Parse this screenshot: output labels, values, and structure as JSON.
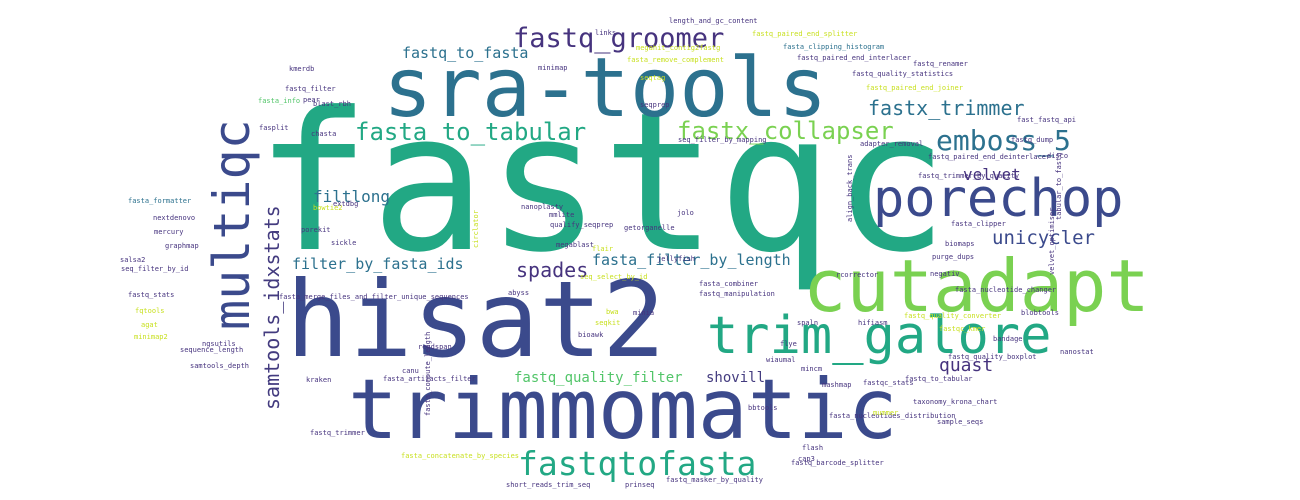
{
  "palette": {
    "navy": "#3b4a8c",
    "indigo": "#433b7f",
    "purple": "#46337e",
    "teal": "#21808d",
    "blueteal": "#2c718e",
    "green": "#22a884",
    "lightgreen": "#52c569",
    "lime": "#7ad151",
    "yellow": "#c8e020"
  },
  "words": [
    {
      "id": "fastqc",
      "text": "fastqc",
      "color": "green"
    },
    {
      "id": "hisat2",
      "text": "hisat2",
      "color": "navy"
    },
    {
      "id": "sra-tools",
      "text": "sra-tools",
      "color": "blueteal"
    },
    {
      "id": "trimmomatic",
      "text": "trimmomatic",
      "color": "navy"
    },
    {
      "id": "cutadapt",
      "text": "cutadapt",
      "color": "lime"
    },
    {
      "id": "trim_galore",
      "text": "trim_galore",
      "color": "green"
    },
    {
      "id": "porechop",
      "text": "porechop",
      "color": "navy"
    },
    {
      "id": "multiqc",
      "text": "multiqc",
      "color": "navy"
    },
    {
      "id": "fastqtofasta",
      "text": "fastqtofasta",
      "color": "green"
    },
    {
      "id": "fastq_groomer",
      "text": "fastq_groomer",
      "color": "purple"
    },
    {
      "id": "emboss_5",
      "text": "emboss_5",
      "color": "blueteal"
    },
    {
      "id": "fasta_to_tabular",
      "text": "fasta_to_tabular",
      "color": "green"
    },
    {
      "id": "fastx_collapser",
      "text": "fastx_collapser",
      "color": "lime"
    },
    {
      "id": "fastx_trimmer",
      "text": "fastx_trimmer",
      "color": "blueteal"
    },
    {
      "id": "samtools_idxstats",
      "text": "samtools_idxstats",
      "color": "indigo"
    },
    {
      "id": "spades",
      "text": "spades",
      "color": "purple"
    },
    {
      "id": "unicycler",
      "text": "unicycler",
      "color": "navy"
    },
    {
      "id": "quast",
      "text": "quast",
      "color": "purple"
    },
    {
      "id": "velvet",
      "text": "velvet",
      "color": "purple"
    },
    {
      "id": "filtlong",
      "text": "filtlong",
      "color": "blueteal"
    },
    {
      "id": "filter_by_fasta_ids",
      "text": "filter_by_fasta_ids",
      "color": "blueteal"
    },
    {
      "id": "fasta_filter_by_length",
      "text": "fasta_filter_by_length",
      "color": "blueteal"
    },
    {
      "id": "fastq_to_fasta",
      "text": "fastq_to_fasta",
      "color": "blueteal"
    },
    {
      "id": "fastq_quality_filter",
      "text": "fastq_quality_filter",
      "color": "lightgreen"
    },
    {
      "id": "shovill",
      "text": "shovill",
      "color": "indigo"
    },
    {
      "id": "length_and_gc_content",
      "text": "length_and_gc_content",
      "color": "purple"
    },
    {
      "id": "links",
      "text": "links",
      "color": "purple"
    },
    {
      "id": "fasta_clipping_histogram",
      "text": "fasta_clipping_histogram",
      "color": "blueteal"
    },
    {
      "id": "fastq_paired_end_splitter",
      "text": "fastq_paired_end_splitter",
      "color": "yellow"
    },
    {
      "id": "fastq_paired_end_interlacer",
      "text": "fastq_paired_end_interlacer",
      "color": "purple"
    },
    {
      "id": "fastq_renamer",
      "text": "fastq_renamer",
      "color": "purple"
    },
    {
      "id": "fasta_remove_complement",
      "text": "fasta_remove_complement",
      "color": "yellow"
    },
    {
      "id": "fastq_quality_statistics",
      "text": "fastq_quality_statistics",
      "color": "purple"
    },
    {
      "id": "fastq_paired_end_joiner",
      "text": "fastq_paired_end_joiner",
      "color": "yellow"
    },
    {
      "id": "megahit_contig2fastg",
      "text": "megahit_contig2fastg",
      "color": "yellow"
    },
    {
      "id": "minimap",
      "text": "minimap",
      "color": "purple"
    },
    {
      "id": "kmerdb",
      "text": "kmerdb",
      "color": "purple"
    },
    {
      "id": "fastq_filter",
      "text": "fastq_filter",
      "color": "purple"
    },
    {
      "id": "pear",
      "text": "pear",
      "color": "purple"
    },
    {
      "id": "seqtag",
      "text": "seqtag",
      "color": "yellow"
    },
    {
      "id": "fasta_info",
      "text": "fasta_info",
      "color": "lightgreen"
    },
    {
      "id": "blast_rbh",
      "text": "blast_rbh",
      "color": "purple"
    },
    {
      "id": "seqprep",
      "text": "seqprep",
      "color": "purple"
    },
    {
      "id": "fast_fastq_api",
      "text": "fast_fastq_api",
      "color": "purple"
    },
    {
      "id": "fastq_dump",
      "text": "fastq_dump",
      "color": "purple"
    },
    {
      "id": "fastq_paired_end_deinterlacer",
      "text": "fastq_paired_end_deinterlacer",
      "color": "purple"
    },
    {
      "id": "adapter_removal",
      "text": "adapter_removal",
      "color": "purple"
    },
    {
      "id": "fasplit",
      "text": "fasplit",
      "color": "purple"
    },
    {
      "id": "chasta",
      "text": "chasta",
      "color": "purple"
    },
    {
      "id": "seq_filter_by_mapping",
      "text": "seq_filter_by_mapping",
      "color": "purple"
    },
    {
      "id": "fastq_trimmer_by_quality",
      "text": "fastq_trimmer_by_quality",
      "color": "purple"
    },
    {
      "id": "bowtie2",
      "text": "bowtie2",
      "color": "yellow"
    },
    {
      "id": "fasta_formatter",
      "text": "fasta_formatter",
      "color": "blueteal"
    },
    {
      "id": "nanoplasty",
      "text": "nanoplasty",
      "color": "purple"
    },
    {
      "id": "jolo",
      "text": "jolo",
      "color": "purple"
    },
    {
      "id": "disco",
      "text": "disco",
      "color": "purple"
    },
    {
      "id": "extdbg",
      "text": "extdbg",
      "color": "purple"
    },
    {
      "id": "mmlite",
      "text": "mmlite",
      "color": "purple"
    },
    {
      "id": "qualify_seqprep",
      "text": "qualify_seqprep",
      "color": "purple"
    },
    {
      "id": "getorganelle",
      "text": "getorganelle",
      "color": "purple"
    },
    {
      "id": "fasta_clipper",
      "text": "fasta_clipper",
      "color": "purple"
    },
    {
      "id": "tabular_to_fastq",
      "text": "tabular_to_fastq",
      "color": "purple"
    },
    {
      "id": "nextdenovo",
      "text": "nextdenovo",
      "color": "purple"
    },
    {
      "id": "mercury",
      "text": "mercury",
      "color": "purple"
    },
    {
      "id": "graphmap",
      "text": "graphmap",
      "color": "purple"
    },
    {
      "id": "seq_filter_by_id",
      "text": "seq_filter_by_id",
      "color": "purple"
    },
    {
      "id": "salsa2",
      "text": "salsa2",
      "color": "purple"
    },
    {
      "id": "porekit",
      "text": "porekit",
      "color": "purple"
    },
    {
      "id": "sickle",
      "text": "sickle",
      "color": "purple"
    },
    {
      "id": "circlator",
      "text": "circlator",
      "color": "yellow"
    },
    {
      "id": "megablast",
      "text": "megablast",
      "color": "purple"
    },
    {
      "id": "jellyfish",
      "text": "jellyfish",
      "color": "purple"
    },
    {
      "id": "align_back_trans",
      "text": "align_back_trans",
      "color": "purple"
    },
    {
      "id": "velvet_optimiser",
      "text": "velvet_optimiser",
      "color": "purple"
    },
    {
      "id": "biomaps",
      "text": "biomaps",
      "color": "purple"
    },
    {
      "id": "purge_dups",
      "text": "purge_dups",
      "color": "purple"
    },
    {
      "id": "flair",
      "text": "flair",
      "color": "yellow"
    },
    {
      "id": "rcorrector",
      "text": "rcorrector",
      "color": "purple"
    },
    {
      "id": "negativ",
      "text": "negativ",
      "color": "purple"
    },
    {
      "id": "fasta_nucleotide_changer",
      "text": "fasta_nucleotide_changer",
      "color": "purple"
    },
    {
      "id": "seq_select_by_id",
      "text": "seq_select_by_id",
      "color": "yellow"
    },
    {
      "id": "fasta_combiner",
      "text": "fasta_combiner",
      "color": "purple"
    },
    {
      "id": "fastq_stats",
      "text": "fastq_stats",
      "color": "purple"
    },
    {
      "id": "abyss",
      "text": "abyss",
      "color": "purple"
    },
    {
      "id": "fastq_manipulation",
      "text": "fastq_manipulation",
      "color": "purple"
    },
    {
      "id": "fasta_merge_files_and_filter_unique_sequences",
      "text": "fasta_merge_files_and_filter_unique_sequences",
      "color": "purple"
    },
    {
      "id": "bwa",
      "text": "bwa",
      "color": "yellow"
    },
    {
      "id": "minia",
      "text": "minia",
      "color": "purple"
    },
    {
      "id": "spaln",
      "text": "spaln",
      "color": "purple"
    },
    {
      "id": "blobtools",
      "text": "blobtools",
      "color": "purple"
    },
    {
      "id": "fastqc_kmer",
      "text": "fastqc_kmer",
      "color": "yellow"
    },
    {
      "id": "hifiasm",
      "text": "hifiasm",
      "color": "purple"
    },
    {
      "id": "fastq_quality_converter",
      "text": "fastq_quality_converter",
      "color": "yellow"
    },
    {
      "id": "sequence_length",
      "text": "sequence_length",
      "color": "purple"
    },
    {
      "id": "fastq_quality_boxplot",
      "text": "fastq_quality_boxplot",
      "color": "purple"
    },
    {
      "id": "bandage",
      "text": "bandage",
      "color": "purple"
    },
    {
      "id": "ngsutils",
      "text": "ngsutils",
      "color": "purple"
    },
    {
      "id": "minimap2",
      "text": "minimap2",
      "color": "yellow"
    },
    {
      "id": "samtools_depth",
      "text": "samtools_depth",
      "color": "purple"
    },
    {
      "id": "readspan",
      "text": "readspan",
      "color": "purple"
    },
    {
      "id": "flye",
      "text": "flye",
      "color": "purple"
    },
    {
      "id": "wiaumal",
      "text": "wiaumal",
      "color": "purple"
    },
    {
      "id": "mincm",
      "text": "mincm",
      "color": "purple"
    },
    {
      "id": "fasta_artifacts_filter",
      "text": "fasta_artifacts_filter",
      "color": "purple"
    },
    {
      "id": "mashmap",
      "text": "mashmap",
      "color": "purple"
    },
    {
      "id": "fastqc_stats",
      "text": "fastqc_stats",
      "color": "purple"
    },
    {
      "id": "fastq_to_tabular",
      "text": "fastq_to_tabular",
      "color": "purple"
    },
    {
      "id": "taxonomy_krona_chart",
      "text": "taxonomy_krona_chart",
      "color": "purple"
    },
    {
      "id": "fasta_nucleotides_distribution",
      "text": "fasta_nucleotides_distribution",
      "color": "purple"
    },
    {
      "id": "fastq_trimmer",
      "text": "fastq_trimmer",
      "color": "purple"
    },
    {
      "id": "mummer",
      "text": "mummer",
      "color": "yellow"
    },
    {
      "id": "flash",
      "text": "flash",
      "color": "purple"
    },
    {
      "id": "sample_seqs",
      "text": "sample_seqs",
      "color": "purple"
    },
    {
      "id": "cap3",
      "text": "cap3",
      "color": "purple"
    },
    {
      "id": "fasta_concatenate_by_species",
      "text": "fasta_concatenate_by_species",
      "color": "yellow"
    },
    {
      "id": "fastq_barcode_splitter",
      "text": "fastq_barcode_splitter",
      "color": "purple"
    },
    {
      "id": "short_reads_trim_seq",
      "text": "short_reads_trim_seq",
      "color": "purple"
    },
    {
      "id": "prinseq",
      "text": "prinseq",
      "color": "purple"
    },
    {
      "id": "fastq_masker_by_quality",
      "text": "fastq_masker_by_quality",
      "color": "purple"
    },
    {
      "id": "fqtools",
      "text": "fqtools",
      "color": "yellow"
    },
    {
      "id": "agat",
      "text": "agat",
      "color": "yellow"
    },
    {
      "id": "kraken",
      "text": "kraken",
      "color": "purple"
    },
    {
      "id": "canu",
      "text": "canu",
      "color": "purple"
    },
    {
      "id": "fasta_compute_length",
      "text": "fasta_compute_length",
      "color": "purple"
    },
    {
      "id": "bioawk",
      "text": "bioawk",
      "color": "purple"
    },
    {
      "id": "seqkit",
      "text": "seqkit",
      "color": "yellow"
    },
    {
      "id": "bbtools",
      "text": "bbtools",
      "color": "purple"
    },
    {
      "id": "nanostat",
      "text": "nanostat",
      "color": "purple"
    }
  ]
}
